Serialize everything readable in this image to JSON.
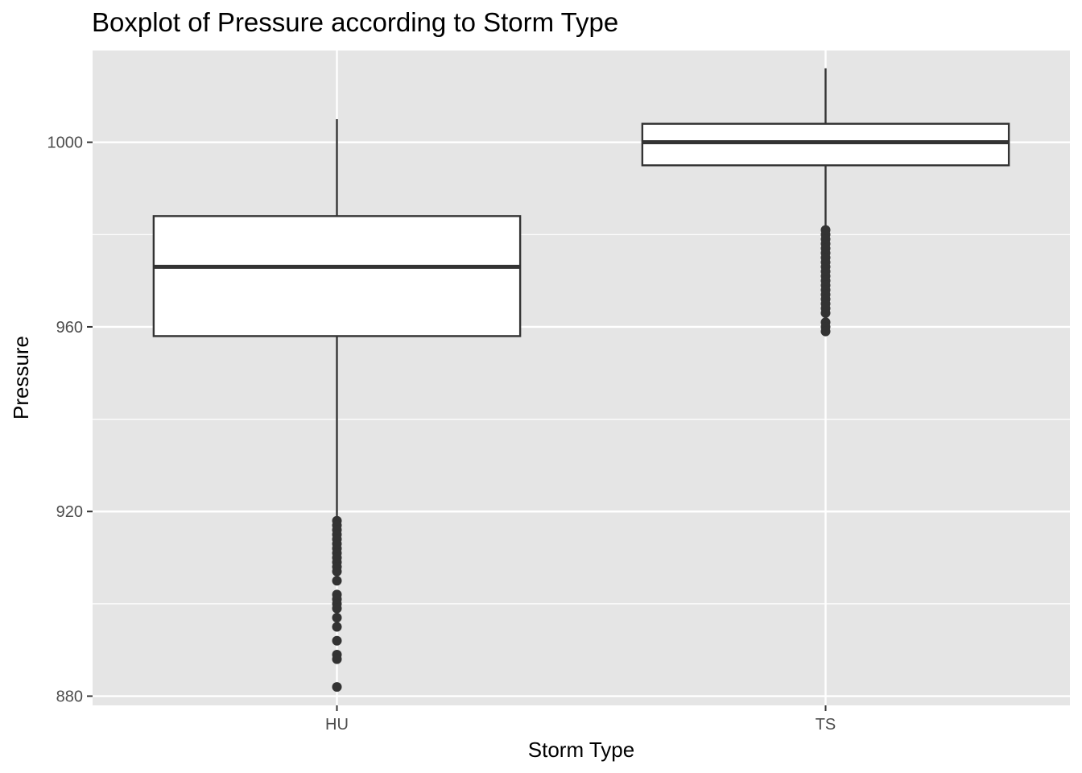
{
  "chart_data": {
    "type": "boxplot",
    "title": "Boxplot of Pressure according to Storm Type",
    "xlabel": "Storm Type",
    "ylabel": "Pressure",
    "categories": [
      "HU",
      "TS"
    ],
    "ylim": [
      878,
      1020
    ],
    "yticks": [
      880,
      920,
      960,
      1000
    ],
    "grid": true,
    "colors": {
      "panel": "#e5e5e5",
      "grid": "#ffffff",
      "box_fill": "#ffffff",
      "line": "#333333",
      "outlier": "#333333"
    },
    "boxes": [
      {
        "category": "HU",
        "whisker_low": 918,
        "q1": 958,
        "median": 973,
        "q3": 984,
        "whisker_high": 1005,
        "outliers": [
          918,
          917,
          916,
          915,
          914,
          913,
          912,
          911,
          910,
          909,
          908,
          907,
          905,
          902,
          901,
          900,
          899,
          897,
          895,
          892,
          889,
          888,
          882
        ]
      },
      {
        "category": "TS",
        "whisker_low": 981,
        "q1": 995,
        "median": 1000,
        "q3": 1004,
        "whisker_high": 1016,
        "outliers": [
          981,
          980,
          979,
          978,
          977,
          976,
          975,
          974,
          973,
          972,
          971,
          970,
          969,
          968,
          967,
          966,
          965,
          964,
          963,
          961,
          960,
          959
        ]
      }
    ]
  }
}
